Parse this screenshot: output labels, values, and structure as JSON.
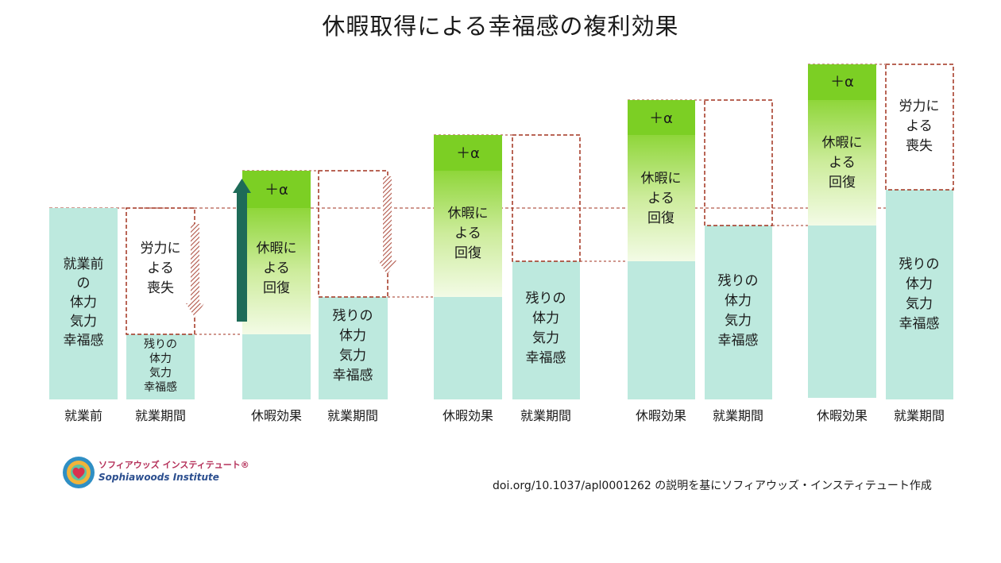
{
  "title": "休暇取得による幸福感の複利効果",
  "colors": {
    "mint": "#bde9de",
    "green_top": "#7ccf24",
    "green_light": "#eef9d8",
    "dashed": "#a2321f",
    "hatch": "#b05548",
    "arrow_up": "#1e6b58"
  },
  "bars": [
    {
      "axis": "就業前",
      "text": [
        "就業前",
        "の",
        "体力",
        "気力",
        "幸福感"
      ]
    },
    {
      "axis": "就業期間",
      "loss": [
        "労力に",
        "よる",
        "喪失"
      ],
      "remain": [
        "残りの",
        "体力",
        "気力",
        "幸福感"
      ]
    },
    {
      "axis": "休暇効果",
      "alpha": "＋α",
      "recover": [
        "休暇に",
        "よる",
        "回復"
      ]
    },
    {
      "axis": "就業期間",
      "remain": [
        "残りの",
        "体力",
        "気力",
        "幸福感"
      ]
    },
    {
      "axis": "休暇効果",
      "alpha": "＋α",
      "recover": [
        "休暇に",
        "よる",
        "回復"
      ]
    },
    {
      "axis": "就業期間",
      "remain": [
        "残りの",
        "体力",
        "気力",
        "幸福感"
      ]
    },
    {
      "axis": "休暇効果",
      "alpha": "＋α",
      "recover": [
        "休暇に",
        "よる",
        "回復"
      ]
    },
    {
      "axis": "就業期間",
      "remain": [
        "残りの",
        "体力",
        "気力",
        "幸福感"
      ]
    },
    {
      "axis": "休暇効果",
      "alpha": "＋α",
      "recover": [
        "休暇に",
        "よる",
        "回復"
      ]
    },
    {
      "axis": "就業期間",
      "loss": [
        "労力に",
        "よる",
        "喪失"
      ],
      "remain": [
        "残りの",
        "体力",
        "気力",
        "幸福感"
      ]
    }
  ],
  "logo": {
    "jp": "ソフィアウッズ インスティテュート®",
    "en": "Sophiawoods Institute"
  },
  "credit": "doi.org/10.1037/apl0001262 の説明を基にソフィアウッズ・インスティテュート作成"
}
